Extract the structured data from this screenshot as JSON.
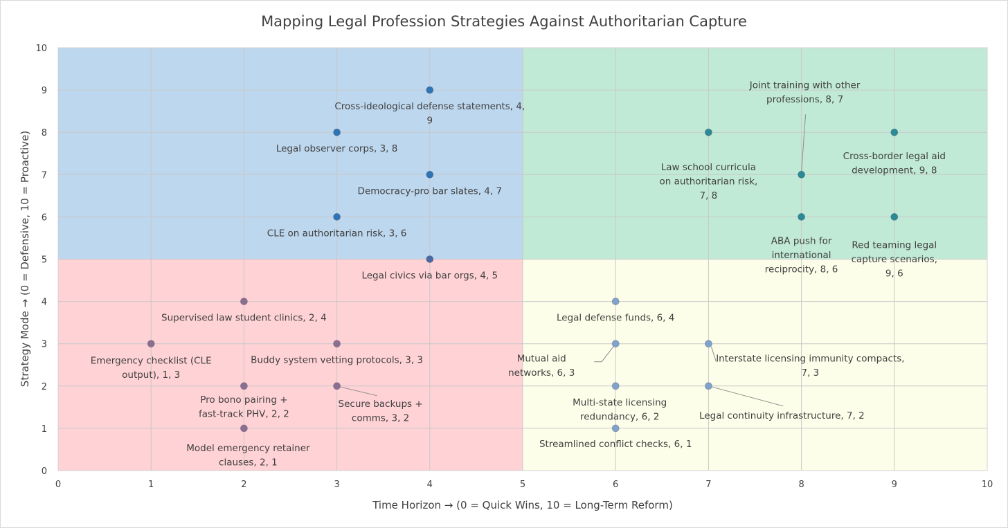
{
  "chart_data": {
    "type": "scatter",
    "title": "Mapping Legal Profession Strategies Against Authoritarian Capture",
    "xlabel": "Time Horizon → (0 = Quick Wins, 10 = Long-Term Reform)",
    "ylabel": "Strategy Mode → (0 = Defensive, 10 = Proactive)",
    "xlim": [
      0,
      10
    ],
    "ylim": [
      0,
      10
    ],
    "x_ticks": [
      "0",
      "1",
      "2",
      "3",
      "4",
      "5",
      "6",
      "7",
      "8",
      "9",
      "10"
    ],
    "y_ticks": [
      "0",
      "1",
      "2",
      "3",
      "4",
      "5",
      "6",
      "7",
      "8",
      "9",
      "10"
    ],
    "grid": true,
    "quadrants": [
      {
        "x": [
          0,
          5
        ],
        "y": [
          5,
          10
        ],
        "color": "#bdd7ee"
      },
      {
        "x": [
          5,
          10
        ],
        "y": [
          5,
          10
        ],
        "color": "#c1ead6"
      },
      {
        "x": [
          0,
          5
        ],
        "y": [
          0,
          5
        ],
        "color": "#ffd2d5"
      },
      {
        "x": [
          5,
          10
        ],
        "y": [
          0,
          5
        ],
        "color": "#fdfee9"
      }
    ],
    "points": [
      {
        "x": 4,
        "y": 9,
        "color": "#2e75b6",
        "label": [
          "Cross-ideological defense statements, 4,",
          "9"
        ]
      },
      {
        "x": 3,
        "y": 8,
        "color": "#2e75b6",
        "label": [
          "Legal observer corps, 3, 8"
        ]
      },
      {
        "x": 4,
        "y": 7,
        "color": "#2e75b6",
        "label": [
          "Democracy-pro bar slates, 4, 7"
        ]
      },
      {
        "x": 3,
        "y": 6,
        "color": "#2e75b6",
        "label": [
          "CLE on authoritarian risk, 3, 6"
        ]
      },
      {
        "x": 4,
        "y": 5,
        "color": "#4a6aa6",
        "label": [
          "Legal civics via bar orgs, 4, 5"
        ]
      },
      {
        "x": 7,
        "y": 8,
        "color": "#2a8a96",
        "label": [
          "Law school curricula",
          "on authoritarian risk,",
          "7, 8"
        ]
      },
      {
        "x": 8,
        "y": 7,
        "color": "#2a8a96",
        "label": [
          "Joint training with other",
          "professions, 8, 7"
        ]
      },
      {
        "x": 9,
        "y": 8,
        "color": "#2a8a96",
        "label": [
          "Cross-border legal aid",
          "development, 9, 8"
        ]
      },
      {
        "x": 8,
        "y": 6,
        "color": "#2a8a96",
        "label": [
          "ABA push for",
          "international",
          "reciprocity, 8, 6"
        ]
      },
      {
        "x": 9,
        "y": 6,
        "color": "#2a8a96",
        "label": [
          "Red teaming legal",
          "capture scenarios,",
          "9, 6"
        ]
      },
      {
        "x": 2,
        "y": 4,
        "color": "#8a6f92",
        "label": [
          "Supervised law student clinics, 2, 4"
        ]
      },
      {
        "x": 1,
        "y": 3,
        "color": "#8a6f92",
        "label": [
          "Emergency checklist (CLE",
          "output), 1, 3"
        ]
      },
      {
        "x": 3,
        "y": 3,
        "color": "#8a6f92",
        "label": [
          "Buddy system vetting protocols, 3, 3"
        ]
      },
      {
        "x": 2,
        "y": 2,
        "color": "#8a6f92",
        "label": [
          "Pro bono pairing +",
          "fast-track PHV, 2, 2"
        ]
      },
      {
        "x": 3,
        "y": 2,
        "color": "#8a6f92",
        "label": [
          "Secure backups +",
          "comms, 3, 2"
        ]
      },
      {
        "x": 2,
        "y": 1,
        "color": "#8a6f92",
        "label": [
          "Model emergency retainer",
          "clauses, 2, 1"
        ]
      },
      {
        "x": 6,
        "y": 4,
        "color": "#7fa3cc",
        "label": [
          "Legal defense funds, 6, 4"
        ]
      },
      {
        "x": 6,
        "y": 3,
        "color": "#7fa3cc",
        "label": [
          "Mutual aid",
          "networks, 6, 3"
        ]
      },
      {
        "x": 7,
        "y": 3,
        "color": "#7fa3cc",
        "label": [
          "Interstate licensing immunity compacts,",
          "7, 3"
        ]
      },
      {
        "x": 6,
        "y": 2,
        "color": "#7fa3cc",
        "label": [
          "Multi-state licensing",
          "redundancy, 6, 2"
        ]
      },
      {
        "x": 7,
        "y": 2,
        "color": "#7fa3cc",
        "label": [
          "Legal continuity infrastructure, 7, 2"
        ]
      },
      {
        "x": 6,
        "y": 1,
        "color": "#7fa3cc",
        "label": [
          "Streamlined conflict checks, 6, 1"
        ]
      }
    ]
  }
}
